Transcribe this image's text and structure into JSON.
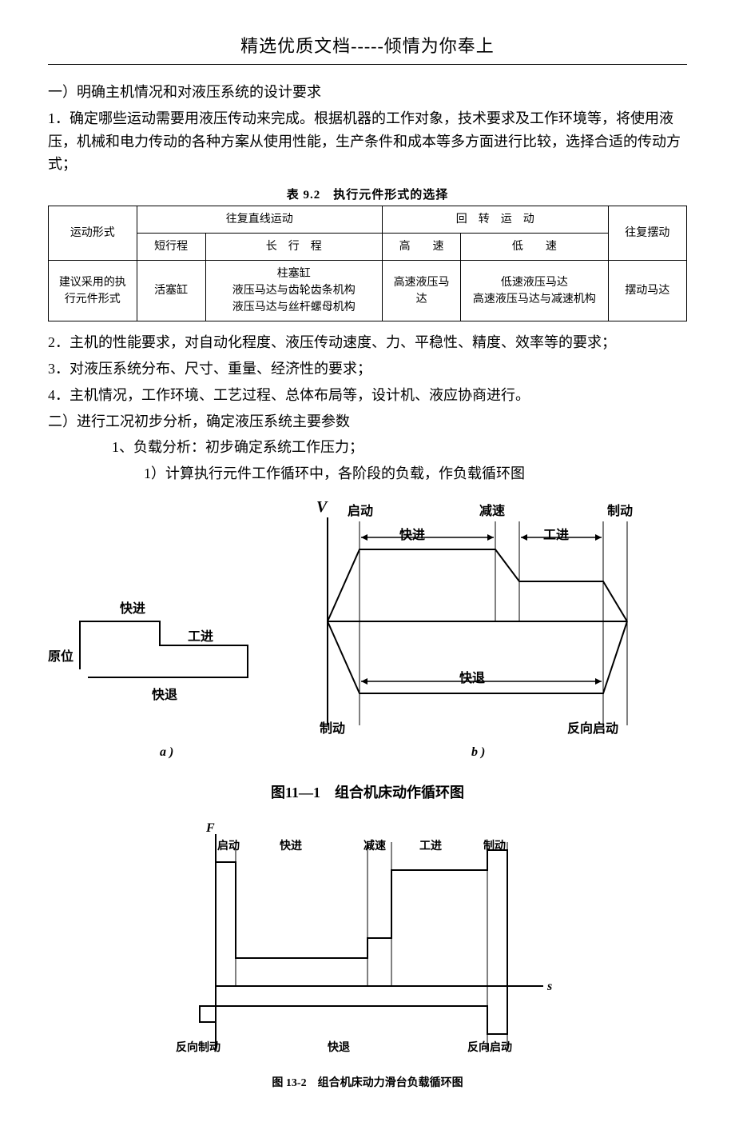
{
  "header": "精选优质文档-----倾情为你奉上",
  "para1_line1": "一）明确主机情况和对液压系统的设计要求",
  "para1_line2": "1．确定哪些运动需要用液压传动来完成。根据机器的工作对象，技术要求及工作环境等，将使用液压，机械和电力传动的各种方案从使用性能，生产条件和成本等多方面进行比较，选择合适的传动方式；",
  "table": {
    "caption": "表 9.2　执行元件形式的选择",
    "row1_col1": "运动形式",
    "row1_col2": "往复直线运动",
    "row1_col3": "回　转　运　动",
    "row1_col4": "往复摆动",
    "row2_col2a": "短行程",
    "row2_col2b": "长　行　程",
    "row2_col3a": "高　　速",
    "row2_col3b": "低　　速",
    "row3_col1": "建议采用的执行元件形式",
    "row3_col2a": "活塞缸",
    "row3_col2b": "柱塞缸\n液压马达与齿轮齿条机构\n液压马达与丝杆螺母机构",
    "row3_col3a": "高速液压马达",
    "row3_col3b": "低速液压马达\n高速液压马达与减速机构",
    "row3_col4": "摆动马达"
  },
  "para2": "2．主机的性能要求，对自动化程度、液压传动速度、力、平稳性、精度、效率等的要求；",
  "para3": "3．对液压系统分布、尺寸、重量、经济性的要求；",
  "para4": "4．主机情况，工作环境、工艺过程、总体布局等，设计机、液应协商进行。",
  "para5": "二）进行工况初步分析，确定液压系统主要参数",
  "para5_1": "1、负载分析：初步确定系统工作压力；",
  "para5_1_1": "1）计算执行元件工作循环中，各阶段的负载，作负载循环图",
  "figure1": {
    "caption": "图11—1　组合机床动作循环图",
    "sub_a": "a )",
    "sub_b": "b )",
    "left_labels": {
      "yuanwei": "原位",
      "kuaijin": "快进",
      "gongjin": "工进",
      "kuaitui": "快退"
    },
    "right_labels": {
      "V": "V",
      "qidong": "启动",
      "jiansu": "减速",
      "zhidong": "制动",
      "kuaijin": "快进",
      "gongjin": "工进",
      "kuaitui": "快退",
      "fanxiangqidong": "反向启动",
      "zhidong2": "制动"
    }
  },
  "figure2": {
    "caption": "图 13-2　组合机床动力滑台负载循环图",
    "labels": {
      "F": "F",
      "s": "s",
      "qidong": "启动",
      "kuaijin": "快进",
      "jiansu": "减速",
      "gongjin": "工进",
      "zhidong": "制动",
      "fanxiangzhidong": "反向制动",
      "kuaitui": "快退",
      "fanxiangqidong": "反向启动"
    }
  },
  "colors": {
    "text": "#000000",
    "background": "#ffffff",
    "line": "#000000"
  }
}
